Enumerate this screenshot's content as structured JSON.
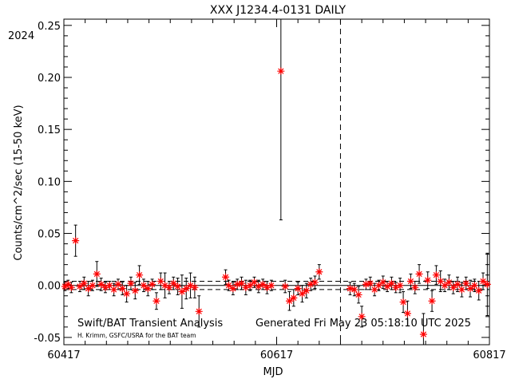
{
  "chart_data": {
    "type": "scatter",
    "title": "XXX J1234.4-0131 DAILY",
    "xlabel": "MJD",
    "ylabel": "Counts/cm^2/sec (15-50 keV)",
    "xlim": [
      60417,
      60817
    ],
    "ylim": [
      -0.057,
      0.256
    ],
    "x_tick_labels": [
      "60417",
      "60617",
      "60817"
    ],
    "x_ticks": [
      60417,
      60617,
      60817
    ],
    "y_ticks": [
      -0.05,
      0.0,
      0.05,
      0.1,
      0.15,
      0.2,
      0.25
    ],
    "y_tick_labels": [
      "-0.05",
      "0.00",
      "0.05",
      "0.10",
      "0.15",
      "0.20",
      "0.25"
    ],
    "year_label": "2024",
    "year_mjd": 60677,
    "mean_level": 0.0,
    "sigma_lines": [
      0.004,
      -0.004
    ],
    "grid": false,
    "marker_color": "#ff0000",
    "series": [
      {
        "points": [
          {
            "x": 60418,
            "y": -0.001,
            "err": 0.004
          },
          {
            "x": 60421,
            "y": 0.001,
            "err": 0.004
          },
          {
            "x": 60424,
            "y": -0.002,
            "err": 0.005
          },
          {
            "x": 60428,
            "y": 0.043,
            "err": 0.015
          },
          {
            "x": 60432,
            "y": -0.001,
            "err": 0.005
          },
          {
            "x": 60436,
            "y": 0.002,
            "err": 0.006
          },
          {
            "x": 60440,
            "y": -0.003,
            "err": 0.007
          },
          {
            "x": 60444,
            "y": 0.0,
            "err": 0.005
          },
          {
            "x": 60448,
            "y": 0.011,
            "err": 0.012
          },
          {
            "x": 60452,
            "y": 0.001,
            "err": 0.006
          },
          {
            "x": 60456,
            "y": -0.002,
            "err": 0.005
          },
          {
            "x": 60460,
            "y": 0.0,
            "err": 0.004
          },
          {
            "x": 60464,
            "y": -0.004,
            "err": 0.006
          },
          {
            "x": 60468,
            "y": 0.001,
            "err": 0.005
          },
          {
            "x": 60472,
            "y": -0.003,
            "err": 0.006
          },
          {
            "x": 60476,
            "y": -0.008,
            "err": 0.008
          },
          {
            "x": 60480,
            "y": 0.002,
            "err": 0.006
          },
          {
            "x": 60484,
            "y": -0.005,
            "err": 0.008
          },
          {
            "x": 60488,
            "y": 0.01,
            "err": 0.009
          },
          {
            "x": 60492,
            "y": 0.0,
            "err": 0.006
          },
          {
            "x": 60496,
            "y": -0.003,
            "err": 0.007
          },
          {
            "x": 60500,
            "y": 0.001,
            "err": 0.005
          },
          {
            "x": 60504,
            "y": -0.015,
            "err": 0.008
          },
          {
            "x": 60508,
            "y": 0.004,
            "err": 0.008
          },
          {
            "x": 60512,
            "y": 0.0,
            "err": 0.012
          },
          {
            "x": 60516,
            "y": -0.002,
            "err": 0.006
          },
          {
            "x": 60520,
            "y": 0.002,
            "err": 0.006
          },
          {
            "x": 60524,
            "y": -0.001,
            "err": 0.008
          },
          {
            "x": 60528,
            "y": -0.006,
            "err": 0.016
          },
          {
            "x": 60532,
            "y": -0.003,
            "err": 0.01
          },
          {
            "x": 60536,
            "y": 0.0,
            "err": 0.012
          },
          {
            "x": 60540,
            "y": -0.002,
            "err": 0.01
          },
          {
            "x": 60544,
            "y": -0.025,
            "err": 0.015
          },
          {
            "x": 60569,
            "y": 0.008,
            "err": 0.007
          },
          {
            "x": 60572,
            "y": 0.0,
            "err": 0.005
          },
          {
            "x": 60576,
            "y": -0.003,
            "err": 0.006
          },
          {
            "x": 60580,
            "y": 0.001,
            "err": 0.005
          },
          {
            "x": 60584,
            "y": 0.002,
            "err": 0.006
          },
          {
            "x": 60588,
            "y": -0.002,
            "err": 0.007
          },
          {
            "x": 60592,
            "y": 0.0,
            "err": 0.005
          },
          {
            "x": 60596,
            "y": 0.003,
            "err": 0.005
          },
          {
            "x": 60600,
            "y": -0.001,
            "err": 0.006
          },
          {
            "x": 60604,
            "y": 0.001,
            "err": 0.005
          },
          {
            "x": 60608,
            "y": -0.002,
            "err": 0.006
          },
          {
            "x": 60612,
            "y": 0.0,
            "err": 0.005
          },
          {
            "x": 60621,
            "y": 0.206,
            "err": 0.143
          },
          {
            "x": 60625,
            "y": -0.001,
            "err": 0.006
          },
          {
            "x": 60629,
            "y": -0.015,
            "err": 0.009
          },
          {
            "x": 60633,
            "y": -0.012,
            "err": 0.008
          },
          {
            "x": 60637,
            "y": -0.003,
            "err": 0.006
          },
          {
            "x": 60641,
            "y": -0.008,
            "err": 0.008
          },
          {
            "x": 60645,
            "y": -0.005,
            "err": 0.007
          },
          {
            "x": 60649,
            "y": 0.001,
            "err": 0.006
          },
          {
            "x": 60653,
            "y": 0.003,
            "err": 0.006
          },
          {
            "x": 60657,
            "y": 0.013,
            "err": 0.007
          },
          {
            "x": 60686,
            "y": -0.003,
            "err": 0.006
          },
          {
            "x": 60690,
            "y": -0.004,
            "err": 0.006
          },
          {
            "x": 60694,
            "y": -0.009,
            "err": 0.008
          },
          {
            "x": 60697,
            "y": -0.03,
            "err": 0.01
          },
          {
            "x": 60701,
            "y": 0.001,
            "err": 0.005
          },
          {
            "x": 60705,
            "y": 0.002,
            "err": 0.006
          },
          {
            "x": 60709,
            "y": -0.004,
            "err": 0.006
          },
          {
            "x": 60713,
            "y": 0.0,
            "err": 0.005
          },
          {
            "x": 60717,
            "y": 0.003,
            "err": 0.006
          },
          {
            "x": 60721,
            "y": -0.001,
            "err": 0.005
          },
          {
            "x": 60725,
            "y": 0.002,
            "err": 0.006
          },
          {
            "x": 60729,
            "y": -0.002,
            "err": 0.005
          },
          {
            "x": 60733,
            "y": 0.0,
            "err": 0.007
          },
          {
            "x": 60736,
            "y": -0.016,
            "err": 0.01
          },
          {
            "x": 60740,
            "y": -0.027,
            "err": 0.012
          },
          {
            "x": 60743,
            "y": 0.004,
            "err": 0.007
          },
          {
            "x": 60747,
            "y": -0.002,
            "err": 0.006
          },
          {
            "x": 60751,
            "y": 0.011,
            "err": 0.009
          },
          {
            "x": 60755,
            "y": -0.047,
            "err": 0.02
          },
          {
            "x": 60759,
            "y": 0.005,
            "err": 0.008
          },
          {
            "x": 60763,
            "y": -0.015,
            "err": 0.01
          },
          {
            "x": 60767,
            "y": 0.01,
            "err": 0.009
          },
          {
            "x": 60771,
            "y": 0.004,
            "err": 0.01
          },
          {
            "x": 60775,
            "y": 0.0,
            "err": 0.006
          },
          {
            "x": 60779,
            "y": 0.003,
            "err": 0.007
          },
          {
            "x": 60783,
            "y": -0.002,
            "err": 0.006
          },
          {
            "x": 60787,
            "y": 0.001,
            "err": 0.007
          },
          {
            "x": 60791,
            "y": -0.004,
            "err": 0.007
          },
          {
            "x": 60795,
            "y": 0.002,
            "err": 0.006
          },
          {
            "x": 60799,
            "y": -0.003,
            "err": 0.008
          },
          {
            "x": 60803,
            "y": 0.0,
            "err": 0.006
          },
          {
            "x": 60807,
            "y": -0.005,
            "err": 0.009
          },
          {
            "x": 60811,
            "y": 0.004,
            "err": 0.008
          },
          {
            "x": 60815,
            "y": 0.001,
            "err": 0.03
          }
        ]
      }
    ],
    "annotations": {
      "left_main": "Swift/BAT Transient Analysis",
      "left_credit": "H. Krimm, GSFC/USRA for the BAT team",
      "generated": "Generated Fri May 23 05:18:10 UTC 2025"
    }
  }
}
